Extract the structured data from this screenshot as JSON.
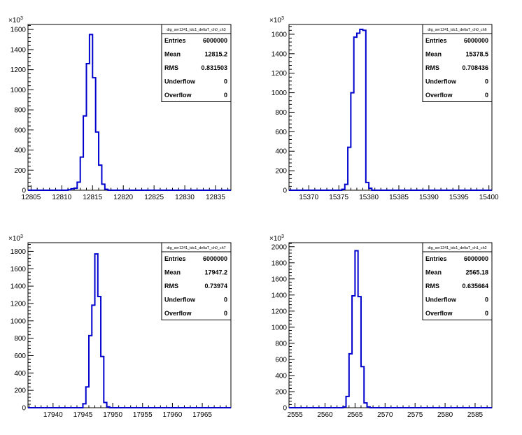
{
  "chart_data": [
    {
      "type": "histogram",
      "stats_box": {
        "title": "dig_ser1241_tdc1_deltaT_ch0_ch3",
        "rows": [
          {
            "label": "Entries",
            "value": "6000000"
          },
          {
            "label": "Mean",
            "value": "12815.2"
          },
          {
            "label": "RMS",
            "value": "0.831503"
          },
          {
            "label": "Underflow",
            "value": "0"
          },
          {
            "label": "Overflow",
            "value": "0"
          }
        ]
      },
      "y_multiplier": "×10",
      "y_multiplier_exp": "3",
      "xlim": [
        12804.5,
        12837.5
      ],
      "ylim": [
        0,
        1650
      ],
      "x_ticks": [
        12805,
        12810,
        12815,
        12820,
        12825,
        12830,
        12835
      ],
      "y_ticks": [
        0,
        200,
        400,
        600,
        800,
        1000,
        1200,
        1400,
        1600
      ],
      "y_tick_labels": [
        "0",
        "200",
        "400",
        "600",
        "800",
        "1000",
        "1200",
        "1400",
        "1600"
      ],
      "bin_width": 0.5,
      "bins": [
        {
          "x0": 12811.0,
          "count": 5
        },
        {
          "x0": 12811.5,
          "count": 15
        },
        {
          "x0": 12812.0,
          "count": 20
        },
        {
          "x0": 12812.5,
          "count": 80
        },
        {
          "x0": 12813.0,
          "count": 330
        },
        {
          "x0": 12813.5,
          "count": 740
        },
        {
          "x0": 12814.0,
          "count": 1260
        },
        {
          "x0": 12814.5,
          "count": 1550
        },
        {
          "x0": 12815.0,
          "count": 1120
        },
        {
          "x0": 12815.5,
          "count": 580
        },
        {
          "x0": 12816.0,
          "count": 250
        },
        {
          "x0": 12816.5,
          "count": 60
        },
        {
          "x0": 12817.0,
          "count": 10
        }
      ]
    },
    {
      "type": "histogram",
      "stats_box": {
        "title": "dig_ser1241_tdc1_deltaT_ch0_ch6",
        "rows": [
          {
            "label": "Entries",
            "value": "6000000"
          },
          {
            "label": "Mean",
            "value": "15378.5"
          },
          {
            "label": "RMS",
            "value": "0.708436"
          },
          {
            "label": "Underflow",
            "value": "0"
          },
          {
            "label": "Overflow",
            "value": "0"
          }
        ]
      },
      "y_multiplier": "×10",
      "y_multiplier_exp": "3",
      "xlim": [
        15366.7,
        15400.5
      ],
      "ylim": [
        0,
        1700
      ],
      "x_ticks": [
        15370,
        15375,
        15380,
        15385,
        15390,
        15395,
        15400
      ],
      "y_ticks": [
        0,
        200,
        400,
        600,
        800,
        1000,
        1200,
        1400,
        1600
      ],
      "y_tick_labels": [
        "0",
        "200",
        "400",
        "600",
        "800",
        "1000",
        "1200",
        "1400",
        "1600"
      ],
      "bin_width": 0.5,
      "bins": [
        {
          "x0": 15375.5,
          "count": 10
        },
        {
          "x0": 15376.0,
          "count": 60
        },
        {
          "x0": 15376.5,
          "count": 440
        },
        {
          "x0": 15377.0,
          "count": 1000
        },
        {
          "x0": 15377.5,
          "count": 1570
        },
        {
          "x0": 15378.0,
          "count": 1610
        },
        {
          "x0": 15378.5,
          "count": 1650
        },
        {
          "x0": 15379.0,
          "count": 1640
        },
        {
          "x0": 15379.5,
          "count": 80
        },
        {
          "x0": 15380.0,
          "count": 20
        }
      ]
    },
    {
      "type": "histogram",
      "stats_box": {
        "title": "dig_ser1241_tdc1_deltaT_ch0_ch7",
        "rows": [
          {
            "label": "Entries",
            "value": "6000000"
          },
          {
            "label": "Mean",
            "value": "17947.2"
          },
          {
            "label": "RMS",
            "value": "0.73974"
          },
          {
            "label": "Underflow",
            "value": "0"
          },
          {
            "label": "Overflow",
            "value": "0"
          }
        ]
      },
      "y_multiplier": "×10",
      "y_multiplier_exp": "3",
      "xlim": [
        17935.8,
        17969.8
      ],
      "ylim": [
        0,
        1900
      ],
      "x_ticks": [
        17940,
        17945,
        17950,
        17955,
        17960,
        17965
      ],
      "y_ticks": [
        0,
        200,
        400,
        600,
        800,
        1000,
        1200,
        1400,
        1600,
        1800
      ],
      "y_tick_labels": [
        "0",
        "200",
        "400",
        "600",
        "800",
        "1000",
        "1200",
        "1400",
        "1600",
        "1800"
      ],
      "bin_width": 0.5,
      "bins": [
        {
          "x0": 17945.0,
          "count": 45
        },
        {
          "x0": 17945.5,
          "count": 240
        },
        {
          "x0": 17946.0,
          "count": 830
        },
        {
          "x0": 17946.5,
          "count": 1180
        },
        {
          "x0": 17947.0,
          "count": 1770
        },
        {
          "x0": 17947.5,
          "count": 1280
        },
        {
          "x0": 17948.0,
          "count": 590
        },
        {
          "x0": 17948.5,
          "count": 60
        },
        {
          "x0": 17949.0,
          "count": 10
        }
      ]
    },
    {
      "type": "histogram",
      "stats_box": {
        "title": "dig_ser1241_tdc1_deltaT_ch1_ch2",
        "rows": [
          {
            "label": "Entries",
            "value": "6000000"
          },
          {
            "label": "Mean",
            "value": "2565.18"
          },
          {
            "label": "RMS",
            "value": "0.635664"
          },
          {
            "label": "Underflow",
            "value": "0"
          },
          {
            "label": "Overflow",
            "value": "0"
          }
        ]
      },
      "y_multiplier": "×10",
      "y_multiplier_exp": "3",
      "xlim": [
        2554.0,
        2587.8
      ],
      "ylim": [
        0,
        2050
      ],
      "x_ticks": [
        2555,
        2560,
        2565,
        2570,
        2575,
        2580,
        2585
      ],
      "y_ticks": [
        0,
        200,
        400,
        600,
        800,
        1000,
        1200,
        1400,
        1600,
        1800,
        2000
      ],
      "y_tick_labels": [
        "0",
        "200",
        "400",
        "600",
        "800",
        "1000",
        "1200",
        "1400",
        "1600",
        "1800",
        "2000"
      ],
      "bin_width": 0.5,
      "bins": [
        {
          "x0": 2563.0,
          "count": 10
        },
        {
          "x0": 2563.5,
          "count": 140
        },
        {
          "x0": 2564.0,
          "count": 670
        },
        {
          "x0": 2564.5,
          "count": 1390
        },
        {
          "x0": 2565.0,
          "count": 1950
        },
        {
          "x0": 2565.5,
          "count": 1380
        },
        {
          "x0": 2566.0,
          "count": 510
        },
        {
          "x0": 2566.5,
          "count": 60
        },
        {
          "x0": 2567.0,
          "count": 10
        }
      ]
    }
  ],
  "colors": {
    "histogram_line": "#0000cc",
    "axis": "#000000",
    "background": "#ffffff"
  }
}
